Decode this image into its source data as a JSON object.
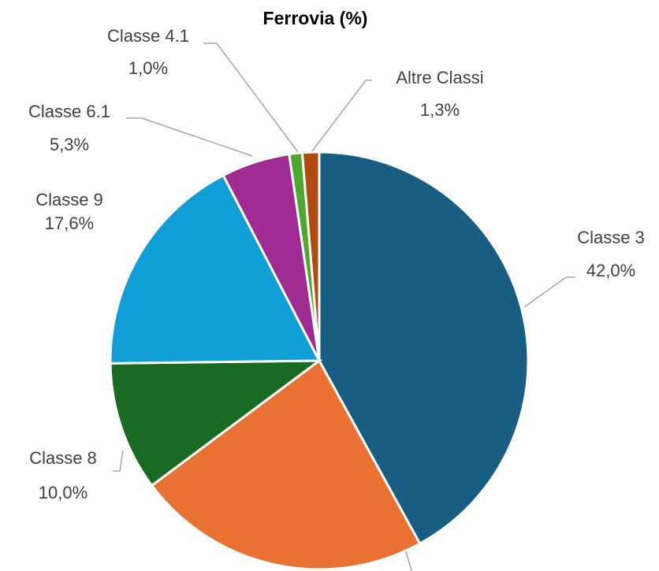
{
  "chart_data": {
    "type": "pie",
    "title": "Ferrovia (%)",
    "categories": [
      "Classe 3",
      null,
      "Classe 8",
      "Classe 9",
      "Classe 6.1",
      "Classe 4.1",
      "Altre Classi"
    ],
    "values": [
      42.0,
      22.8,
      10.0,
      17.6,
      5.3,
      1.0,
      1.3
    ],
    "value_labels": [
      "42,0%",
      null,
      "10,0%",
      "17,6%",
      "5,3%",
      "1,0%",
      "1,3%"
    ],
    "colors": [
      "#175e82",
      "#e97132",
      "#196b24",
      "#0f9ed5",
      "#a02b93",
      "#4ea72e",
      "#b04a10"
    ]
  }
}
